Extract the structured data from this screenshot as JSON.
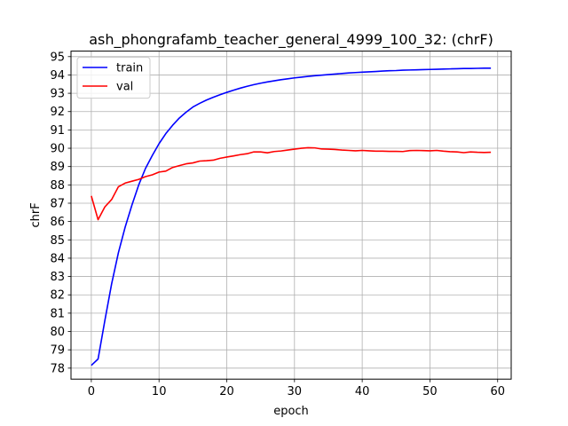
{
  "chart_data": {
    "type": "line",
    "title": "ash_phongrafamb_teacher_general_4999_100_32: (chrF)",
    "xlabel": "epoch",
    "ylabel": "chrF",
    "xlim": [
      -3,
      62
    ],
    "ylim": [
      77.4,
      95.3
    ],
    "xticks": [
      0,
      10,
      20,
      30,
      40,
      50,
      60
    ],
    "yticks": [
      78,
      79,
      80,
      81,
      82,
      83,
      84,
      85,
      86,
      87,
      88,
      89,
      90,
      91,
      92,
      93,
      94,
      95
    ],
    "grid": true,
    "legend_position": "top-left",
    "series": [
      {
        "name": "train",
        "color": "#0000ff",
        "x": [
          0,
          1,
          2,
          3,
          4,
          5,
          6,
          7,
          8,
          9,
          10,
          11,
          12,
          13,
          14,
          15,
          16,
          17,
          18,
          19,
          20,
          21,
          22,
          23,
          24,
          25,
          26,
          27,
          28,
          29,
          30,
          31,
          32,
          33,
          34,
          35,
          36,
          37,
          38,
          39,
          40,
          41,
          42,
          43,
          44,
          45,
          46,
          47,
          48,
          49,
          50,
          51,
          52,
          53,
          54,
          55,
          56,
          57,
          58,
          59
        ],
        "values": [
          78.15,
          78.5,
          80.6,
          82.6,
          84.3,
          85.7,
          86.9,
          88.0,
          88.9,
          89.6,
          90.25,
          90.8,
          91.25,
          91.65,
          91.97,
          92.25,
          92.45,
          92.63,
          92.78,
          92.92,
          93.05,
          93.17,
          93.28,
          93.38,
          93.47,
          93.55,
          93.62,
          93.68,
          93.74,
          93.79,
          93.84,
          93.88,
          93.92,
          93.96,
          93.99,
          94.02,
          94.05,
          94.08,
          94.11,
          94.13,
          94.15,
          94.17,
          94.19,
          94.21,
          94.23,
          94.24,
          94.26,
          94.27,
          94.28,
          94.29,
          94.3,
          94.31,
          94.32,
          94.33,
          94.34,
          94.35,
          94.35,
          94.36,
          94.37,
          94.37
        ]
      },
      {
        "name": "val",
        "color": "#ff0000",
        "x": [
          0,
          1,
          2,
          3,
          4,
          5,
          6,
          7,
          8,
          9,
          10,
          11,
          12,
          13,
          14,
          15,
          16,
          17,
          18,
          19,
          20,
          21,
          22,
          23,
          24,
          25,
          26,
          27,
          28,
          29,
          30,
          31,
          32,
          33,
          34,
          35,
          36,
          37,
          38,
          39,
          40,
          41,
          42,
          43,
          44,
          45,
          46,
          47,
          48,
          49,
          50,
          51,
          52,
          53,
          54,
          55,
          56,
          57,
          58,
          59
        ],
        "values": [
          87.4,
          86.1,
          86.8,
          87.2,
          87.9,
          88.1,
          88.2,
          88.3,
          88.45,
          88.55,
          88.7,
          88.75,
          88.95,
          89.05,
          89.15,
          89.2,
          89.3,
          89.32,
          89.35,
          89.45,
          89.52,
          89.58,
          89.65,
          89.7,
          89.8,
          89.8,
          89.75,
          89.82,
          89.85,
          89.9,
          89.95,
          90.0,
          90.03,
          90.02,
          89.96,
          89.95,
          89.93,
          89.9,
          89.88,
          89.86,
          89.88,
          89.86,
          89.84,
          89.84,
          89.83,
          89.83,
          89.82,
          89.87,
          89.88,
          89.87,
          89.86,
          89.88,
          89.84,
          89.81,
          89.8,
          89.76,
          89.8,
          89.78,
          89.77,
          89.78
        ]
      }
    ]
  }
}
